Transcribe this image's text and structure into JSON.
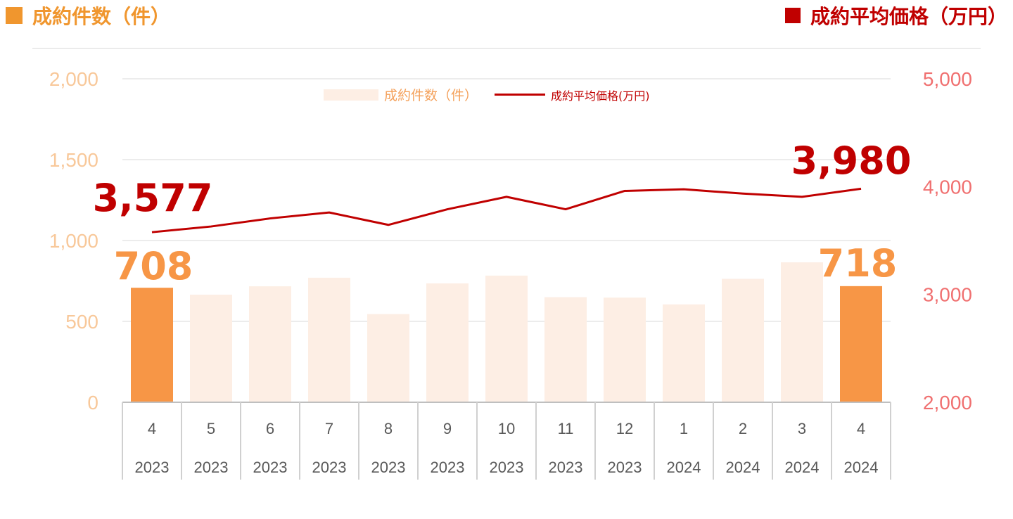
{
  "header": {
    "left_title": "成約件数（件）",
    "right_title": "成約平均価格（万円）"
  },
  "colors": {
    "count_accent": "#f0962e",
    "bar_highlight": "#f79646",
    "bar_normal": "#fdeee4",
    "price_line": "#c00000",
    "left_axis": "#f8c89a",
    "right_axis": "#f07070"
  },
  "chart_data": {
    "type": "bar",
    "categories": [
      "4",
      "5",
      "6",
      "7",
      "8",
      "9",
      "10",
      "11",
      "12",
      "1",
      "2",
      "3",
      "4"
    ],
    "years": [
      "2023",
      "2023",
      "2023",
      "2023",
      "2023",
      "2023",
      "2023",
      "2023",
      "2023",
      "2024",
      "2024",
      "2024",
      "2024"
    ],
    "series": [
      {
        "name": "成約件数（件）",
        "type": "bar",
        "axis": "left",
        "values": [
          708,
          665,
          717,
          770,
          545,
          735,
          783,
          650,
          647,
          605,
          763,
          865,
          718
        ],
        "highlight_indices": [
          0,
          12
        ]
      },
      {
        "name": "成約平均価格(万円)",
        "type": "line",
        "axis": "right",
        "values": [
          3577,
          3630,
          3705,
          3760,
          3645,
          3790,
          3905,
          3790,
          3960,
          3975,
          3935,
          3905,
          3980
        ]
      }
    ],
    "left_axis": {
      "ylim": [
        0,
        2000
      ],
      "ticks": [
        "0",
        "500",
        "1,000",
        "1,500",
        "2,000"
      ]
    },
    "right_axis": {
      "ylim": [
        2000,
        5000
      ],
      "ticks": [
        "2,000",
        "3,000",
        "4,000",
        "5,000"
      ]
    },
    "annotations": {
      "count_first": "708",
      "count_last": "718",
      "price_first": "3,577",
      "price_last": "3,980"
    },
    "legend": {
      "bar_label": "成約件数（件）",
      "line_label": "成約平均価格(万円)",
      "position": "top-center"
    },
    "grid": true
  }
}
